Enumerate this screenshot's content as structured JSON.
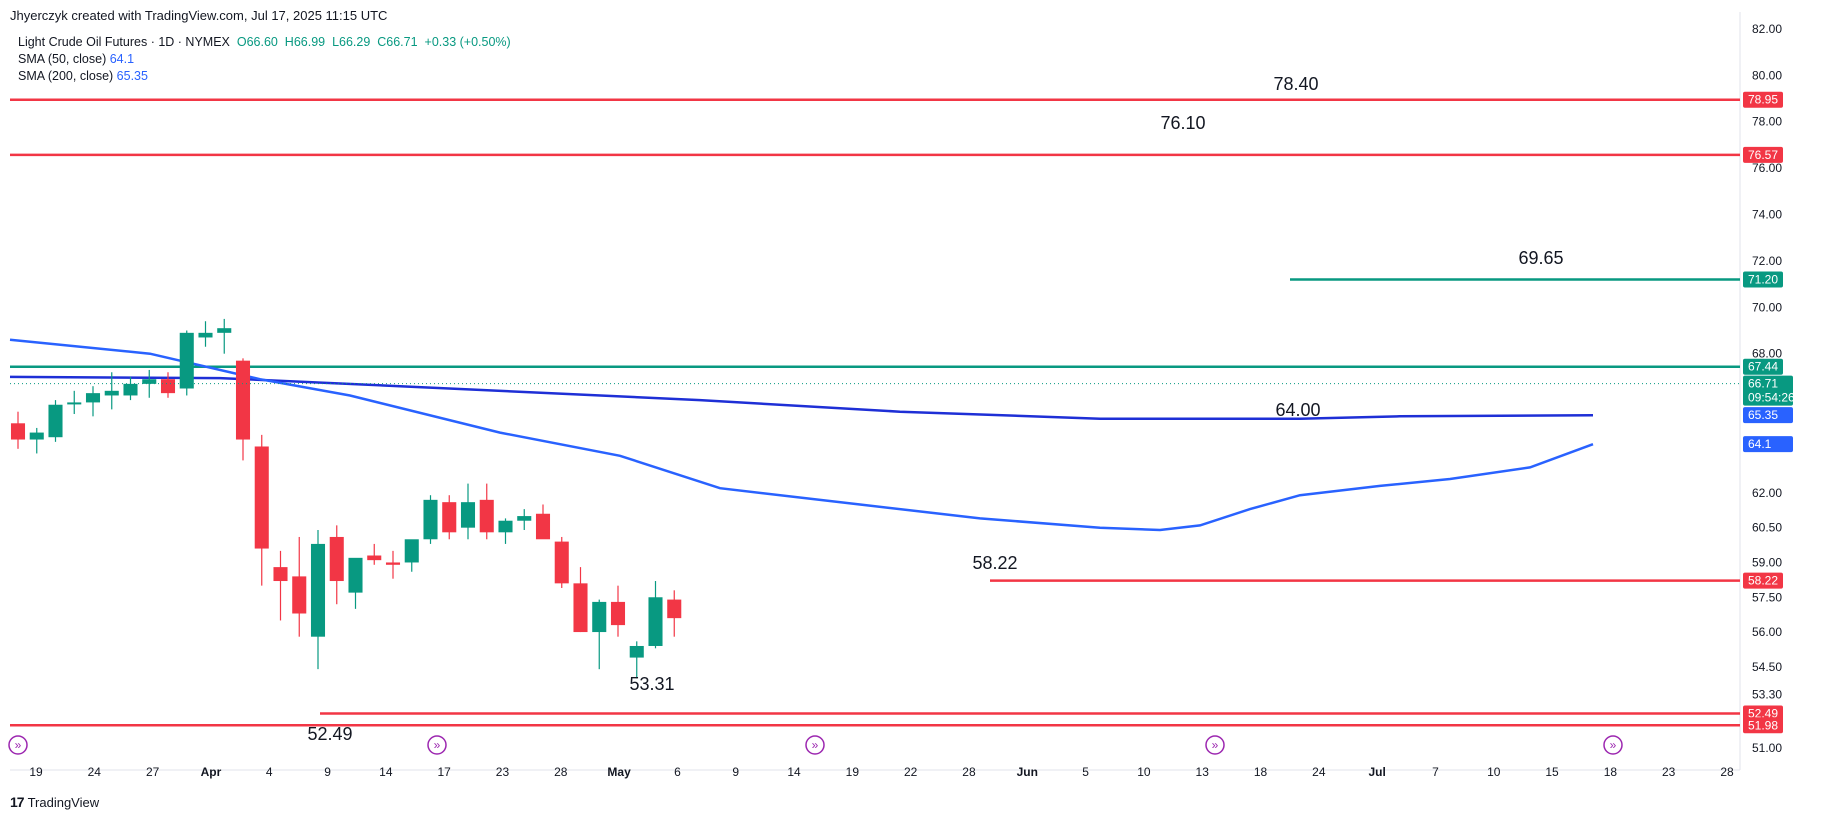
{
  "header": {
    "credit": "Jhyerczyk created with TradingView.com, Jul 17, 2025 11:15 UTC"
  },
  "legend": {
    "symbol": "Light Crude Oil Futures · 1D · NYMEX",
    "o_label": "O",
    "o_val": "66.60",
    "h_label": "H",
    "h_val": "66.99",
    "l_label": "L",
    "l_val": "66.29",
    "c_label": "C",
    "c_val": "66.71",
    "change": "+0.33 (+0.50%)",
    "sma50_label": "SMA (50, close)",
    "sma50_val": "64.1",
    "sma200_label": "SMA (200, close)",
    "sma200_val": "65.35"
  },
  "footer": {
    "logo_text": "TradingView"
  },
  "colors": {
    "up": "#089981",
    "down": "#f23645",
    "sma": "#2962ff",
    "support": "#f23645",
    "resistance": "#089981",
    "grid": "#f0f3fa",
    "axis_text": "#131722"
  },
  "chart_data": {
    "type": "candlestick",
    "title": "Light Crude Oil Futures · 1D · NYMEX",
    "x_tick_labels": [
      "19",
      "24",
      "27",
      "Apr",
      "4",
      "9",
      "14",
      "17",
      "23",
      "28",
      "May",
      "6",
      "9",
      "14",
      "19",
      "22",
      "28",
      "Jun",
      "5",
      "10",
      "13",
      "18",
      "24",
      "Jul",
      "7",
      "10",
      "15",
      "18",
      "23",
      "28"
    ],
    "y_tick_labels": [
      "82.00",
      "80.00",
      "78.00",
      "76.00",
      "74.00",
      "72.00",
      "70.00",
      "68.00",
      "62.00",
      "60.50",
      "59.00",
      "57.50",
      "56.00",
      "54.50",
      "53.30",
      "51.00"
    ],
    "ylim": [
      50.7,
      82.3
    ],
    "horizontal_levels": [
      {
        "value": 78.95,
        "label": "78.95",
        "color": "red"
      },
      {
        "value": 76.57,
        "label": "76.57",
        "color": "red"
      },
      {
        "value": 71.2,
        "label": "71.20",
        "color": "green"
      },
      {
        "value": 67.44,
        "label": "67.44",
        "color": "green"
      },
      {
        "value": 58.22,
        "label": "58.22",
        "color": "red"
      },
      {
        "value": 52.49,
        "label": "52.49",
        "color": "red"
      },
      {
        "value": 51.98,
        "label": "51.98",
        "color": "red"
      }
    ],
    "price_badges": [
      {
        "value": 66.71,
        "label": "66.71",
        "sublabel": "09:54:26",
        "color": "green"
      },
      {
        "value": 65.35,
        "label": "65.35",
        "color": "blue"
      },
      {
        "value": 64.1,
        "label": "64.1",
        "color": "blue"
      }
    ],
    "annotations": [
      {
        "text": "78.40",
        "date_index": 41,
        "value": 78.4
      },
      {
        "text": "76.10",
        "date_index": 39,
        "value": 76.1
      },
      {
        "text": "69.65",
        "date_index": 56,
        "value": 69.65
      },
      {
        "text": "64.00",
        "date_index": 42,
        "value": 64.0
      },
      {
        "text": "58.22",
        "date_index": 33,
        "value": 58.22
      },
      {
        "text": "53.31",
        "date_index": 21,
        "value": 53.31
      },
      {
        "text": "52.49",
        "date_index": 10,
        "value": 52.49
      }
    ],
    "candles": [
      {
        "o": 65.0,
        "h": 65.5,
        "l": 63.9,
        "c": 64.3
      },
      {
        "o": 64.3,
        "h": 64.8,
        "l": 63.7,
        "c": 64.6
      },
      {
        "o": 64.4,
        "h": 66.0,
        "l": 64.2,
        "c": 65.8
      },
      {
        "o": 65.9,
        "h": 66.4,
        "l": 65.4,
        "c": 65.9
      },
      {
        "o": 65.9,
        "h": 66.6,
        "l": 65.3,
        "c": 66.3
      },
      {
        "o": 66.2,
        "h": 67.2,
        "l": 65.6,
        "c": 66.4
      },
      {
        "o": 66.2,
        "h": 67.0,
        "l": 66.0,
        "c": 66.7
      },
      {
        "o": 66.7,
        "h": 67.3,
        "l": 66.1,
        "c": 66.9
      },
      {
        "o": 66.9,
        "h": 67.2,
        "l": 66.1,
        "c": 66.3
      },
      {
        "o": 66.5,
        "h": 69.0,
        "l": 66.2,
        "c": 68.9
      },
      {
        "o": 68.7,
        "h": 69.4,
        "l": 68.3,
        "c": 68.9
      },
      {
        "o": 68.9,
        "h": 69.5,
        "l": 68.0,
        "c": 69.1
      },
      {
        "o": 67.7,
        "h": 67.8,
        "l": 63.4,
        "c": 64.3
      },
      {
        "o": 64.0,
        "h": 64.5,
        "l": 58.0,
        "c": 59.6
      },
      {
        "o": 58.8,
        "h": 59.5,
        "l": 56.5,
        "c": 58.2
      },
      {
        "o": 58.4,
        "h": 60.1,
        "l": 55.8,
        "c": 56.8
      },
      {
        "o": 55.8,
        "h": 60.4,
        "l": 54.4,
        "c": 59.8
      },
      {
        "o": 60.1,
        "h": 60.6,
        "l": 57.2,
        "c": 58.2
      },
      {
        "o": 57.7,
        "h": 59.1,
        "l": 57.0,
        "c": 59.2
      },
      {
        "o": 59.3,
        "h": 59.8,
        "l": 58.9,
        "c": 59.1
      },
      {
        "o": 59.0,
        "h": 59.5,
        "l": 58.3,
        "c": 58.9
      },
      {
        "o": 59.0,
        "h": 59.9,
        "l": 58.6,
        "c": 60.0
      },
      {
        "o": 60.0,
        "h": 61.9,
        "l": 59.8,
        "c": 61.7
      },
      {
        "o": 61.6,
        "h": 61.9,
        "l": 60.0,
        "c": 60.3
      },
      {
        "o": 60.5,
        "h": 62.4,
        "l": 60.0,
        "c": 61.6
      },
      {
        "o": 61.7,
        "h": 62.4,
        "l": 60.0,
        "c": 60.3
      },
      {
        "o": 60.3,
        "h": 60.9,
        "l": 59.8,
        "c": 60.8
      },
      {
        "o": 60.8,
        "h": 61.3,
        "l": 60.4,
        "c": 61.0
      },
      {
        "o": 61.1,
        "h": 61.5,
        "l": 60.2,
        "c": 60.0
      },
      {
        "o": 59.9,
        "h": 60.1,
        "l": 57.9,
        "c": 58.1
      },
      {
        "o": 58.1,
        "h": 58.8,
        "l": 56.0,
        "c": 56.0
      },
      {
        "o": 56.0,
        "h": 57.4,
        "l": 54.4,
        "c": 57.3
      },
      {
        "o": 57.3,
        "h": 58.0,
        "l": 55.8,
        "c": 56.3
      },
      {
        "o": 54.9,
        "h": 55.6,
        "l": 54.0,
        "c": 55.4
      },
      {
        "o": 55.4,
        "h": 58.2,
        "l": 55.3,
        "c": 57.5
      },
      {
        "o": 57.4,
        "h": 57.8,
        "l": 55.8,
        "c": 56.6
      }
    ]
  }
}
